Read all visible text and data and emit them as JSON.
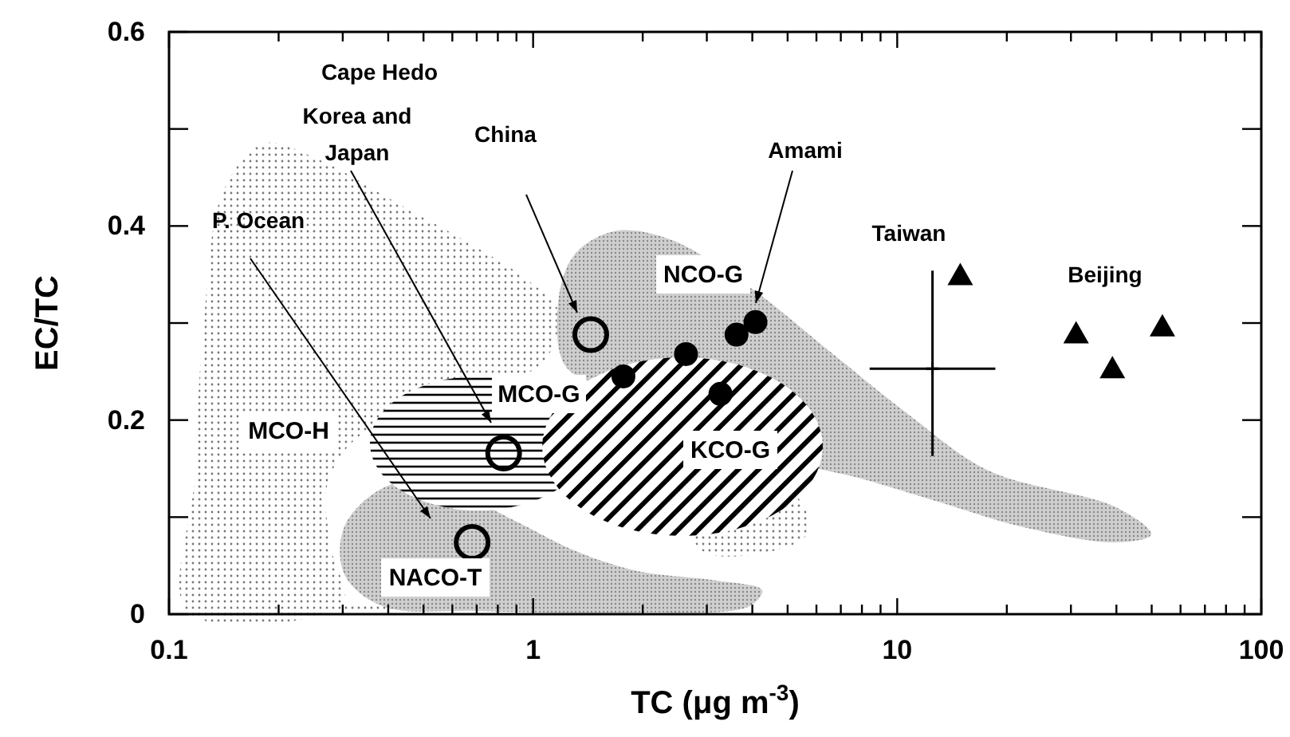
{
  "chart_data": {
    "type": "scatter",
    "xlabel": "TC (μg m$^{-3}$)",
    "ylabel": "EC/TC",
    "log": "x",
    "xlim": [
      0.1,
      100
    ],
    "ylim": [
      0,
      0.6
    ],
    "xticks": [
      0.1,
      {
        "value": 0.2,
        "label": null
      },
      {
        "value": 0.3,
        "label": null
      },
      {
        "value": 0.4,
        "label": null
      },
      {
        "value": 0.5,
        "label": null
      },
      {
        "value": 0.6,
        "label": null
      },
      {
        "value": 0.7,
        "label": null
      },
      {
        "value": 0.8,
        "label": null
      },
      {
        "value": 0.9,
        "label": null
      },
      1,
      {
        "value": 2,
        "label": null
      },
      {
        "value": 3,
        "label": null
      },
      {
        "value": 4,
        "label": null
      },
      {
        "value": 5,
        "label": null
      },
      {
        "value": 6,
        "label": null
      },
      {
        "value": 7,
        "label": null
      },
      {
        "value": 8,
        "label": null
      },
      {
        "value": 9,
        "label": null
      },
      10,
      {
        "value": 20,
        "label": null
      },
      {
        "value": 30,
        "label": null
      },
      {
        "value": 40,
        "label": null
      },
      {
        "value": 50,
        "label": null
      },
      {
        "value": 60,
        "label": null
      },
      {
        "value": 70,
        "label": null
      },
      {
        "value": 80,
        "label": null
      },
      {
        "value": 90,
        "label": null
      },
      100
    ],
    "yticks": [
      0,
      {
        "value": 0.1,
        "label": null
      },
      0.2,
      {
        "value": 0.3,
        "label": null
      },
      0.4,
      {
        "value": 0.5,
        "label": null
      },
      0.6
    ],
    "grid": false,
    "series": [
      {
        "color": "#000000",
        "marker": "circle",
        "x": [
          1.44,
          0.83,
          0.68
        ],
        "values": [
          0.288,
          0.166,
          0.074
        ]
      },
      {
        "color": "#000000",
        "marker": "circle",
        "x": [
          1.77,
          2.63,
          3.62,
          4.08,
          3.27
        ],
        "values": [
          0.245,
          0.268,
          0.288,
          0.301,
          0.227
        ]
      },
      {
        "color": "#000000",
        "marker": "triangle",
        "x": [
          14.9,
          31,
          39,
          53.5
        ],
        "values": [
          0.349,
          0.289,
          0.253,
          0.296
        ]
      },
      {
        "color": "#000000",
        "marker": "cross",
        "x": [
          12.5
        ],
        "values": [
          0.253
        ],
        "errors": [
          [
            0.163,
            0.354
          ]
        ],
        "xerrors": [
          [
            8.4,
            18.6
          ]
        ]
      }
    ],
    "annotations": [
      "Cape Hedo",
      "Korea and\nJapan",
      "China",
      "P. Ocean",
      "Amami",
      "Taiwan",
      "Beijing",
      "NCO-G",
      "MCO-G",
      "MCO-H",
      "KCO-G",
      "NACO-T"
    ]
  }
}
